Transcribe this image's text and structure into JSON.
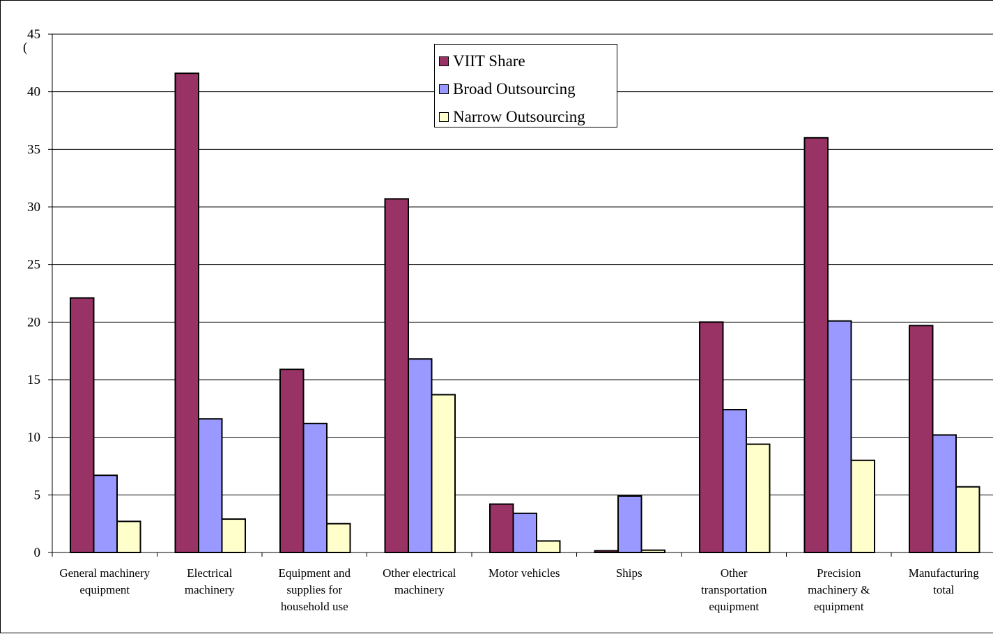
{
  "chart_data": {
    "type": "bar",
    "title": "",
    "xlabel": "",
    "ylabel": "(",
    "ylim": [
      0,
      45
    ],
    "yticks": [
      0,
      5,
      10,
      15,
      20,
      25,
      30,
      35,
      40,
      45
    ],
    "grid": true,
    "legend_position": "top-center",
    "categories": [
      [
        "General machinery",
        "equipment"
      ],
      [
        "Electrical",
        "machinery"
      ],
      [
        "Equipment and",
        "supplies for",
        "household use"
      ],
      [
        "Other electrical",
        "machinery"
      ],
      [
        "Motor vehicles"
      ],
      [
        "Ships"
      ],
      [
        "Other",
        "transportation",
        "equipment"
      ],
      [
        "Precision",
        "machinery &",
        "equipment"
      ],
      [
        "Manufacturing",
        "total"
      ]
    ],
    "series": [
      {
        "name": "VIIT Share",
        "color": "#993366",
        "values": [
          22.1,
          41.6,
          15.9,
          30.7,
          4.2,
          0.15,
          20.0,
          36.0,
          19.7
        ]
      },
      {
        "name": "Broad Outsourcing",
        "color": "#9999ff",
        "values": [
          6.7,
          11.6,
          11.2,
          16.8,
          3.4,
          4.9,
          12.4,
          20.1,
          10.2
        ]
      },
      {
        "name": "Narrow Outsourcing",
        "color": "#ffffcc",
        "values": [
          2.7,
          2.9,
          2.5,
          13.7,
          1.0,
          0.2,
          9.4,
          8.0,
          5.7
        ]
      }
    ]
  }
}
